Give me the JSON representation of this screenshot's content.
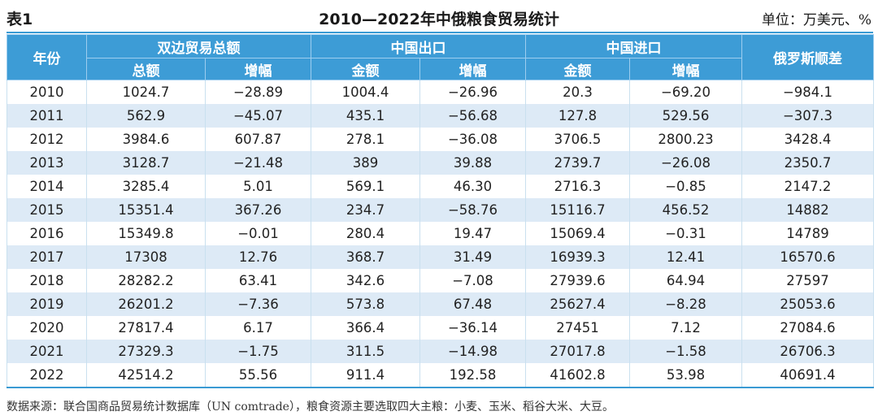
{
  "header": {
    "table_label": "表1",
    "caption": "2010—2022年中俄粮食贸易统计",
    "unit": "单位：万美元、%"
  },
  "columns": {
    "year": "年份",
    "bilateral_total": "双边贸易总额",
    "china_export": "中国出口",
    "china_import": "中国进口",
    "russia_surplus": "俄罗斯顺差",
    "sub_total": "总额",
    "sub_growth_1": "增幅",
    "sub_amount_export": "金额",
    "sub_growth_2": "增幅",
    "sub_amount_import": "金额",
    "sub_growth_3": "增幅"
  },
  "rows": [
    [
      "2010",
      "1024.7",
      "−28.89",
      "1004.4",
      "−26.96",
      "20.3",
      "−69.20",
      "−984.1"
    ],
    [
      "2011",
      "562.9",
      "−45.07",
      "435.1",
      "−56.68",
      "127.8",
      "529.56",
      "−307.3"
    ],
    [
      "2012",
      "3984.6",
      "607.87",
      "278.1",
      "−36.08",
      "3706.5",
      "2800.23",
      "3428.4"
    ],
    [
      "2013",
      "3128.7",
      "−21.48",
      "389",
      "39.88",
      "2739.7",
      "−26.08",
      "2350.7"
    ],
    [
      "2014",
      "3285.4",
      "5.01",
      "569.1",
      "46.30",
      "2716.3",
      "−0.85",
      "2147.2"
    ],
    [
      "2015",
      "15351.4",
      "367.26",
      "234.7",
      "−58.76",
      "15116.7",
      "456.52",
      "14882"
    ],
    [
      "2016",
      "15349.8",
      "−0.01",
      "280.4",
      "19.47",
      "15069.4",
      "−0.31",
      "14789"
    ],
    [
      "2017",
      "17308",
      "12.76",
      "368.7",
      "31.49",
      "16939.3",
      "12.41",
      "16570.6"
    ],
    [
      "2018",
      "28282.2",
      "63.41",
      "342.6",
      "−7.08",
      "27939.6",
      "64.94",
      "27597"
    ],
    [
      "2019",
      "26201.2",
      "−7.36",
      "573.8",
      "67.48",
      "25627.4",
      "−8.28",
      "25053.6"
    ],
    [
      "2020",
      "27817.4",
      "6.17",
      "366.4",
      "−36.14",
      "27451",
      "7.12",
      "27084.6"
    ],
    [
      "2021",
      "27329.3",
      "−1.75",
      "311.5",
      "−14.98",
      "27017.8",
      "−1.58",
      "26706.3"
    ],
    [
      "2022",
      "42514.2",
      "55.56",
      "911.4",
      "192.58",
      "41602.8",
      "53.98",
      "40691.4"
    ]
  ],
  "source_note": "数据来源：联合国商品贸易统计数据库（UN comtrade），粮食资源主要选取四大主粮：小麦、玉米、稻谷大米、大豆。",
  "colors": {
    "header_bg": "#3d9cd6",
    "stripe_bg": "#ddeaf6",
    "rule": "#3a9ad3"
  }
}
